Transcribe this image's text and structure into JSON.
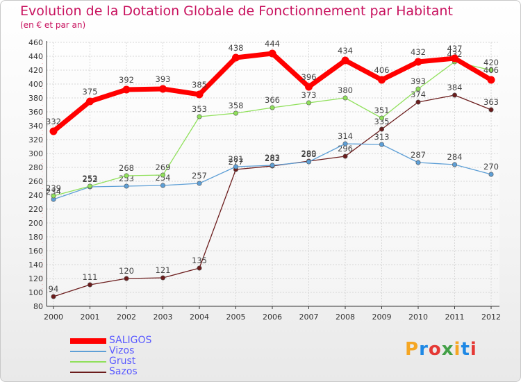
{
  "header": {
    "title": "Evolution de la Dotation Globale de Fonctionnement par Habitant",
    "subtitle": "(en € et par an)"
  },
  "chart_data": {
    "type": "line",
    "title": "Evolution de la Dotation Globale de Fonctionnement par Habitant",
    "subtitle": "(en € et par an)",
    "xlabel": "",
    "ylabel": "",
    "x": [
      "2000",
      "2001",
      "2002",
      "2003",
      "2004",
      "2005",
      "2006",
      "2007",
      "2008",
      "2009",
      "2010",
      "2011",
      "2012"
    ],
    "ylim": [
      80,
      460
    ],
    "yticks": [
      80,
      100,
      120,
      140,
      160,
      180,
      200,
      220,
      240,
      260,
      280,
      300,
      320,
      340,
      360,
      380,
      400,
      420,
      440,
      460
    ],
    "grid": true,
    "legend_position": "bottom-left",
    "series": [
      {
        "name": "Sazos",
        "color": "#6b1c1c",
        "values": [
          94,
          111,
          120,
          121,
          135,
          277,
          282,
          289,
          296,
          335,
          374,
          384,
          363
        ]
      },
      {
        "name": "Vizos",
        "color": "#5e9fd6",
        "values": [
          234,
          252,
          253,
          254,
          257,
          281,
          283,
          288,
          314,
          313,
          287,
          284,
          270
        ]
      },
      {
        "name": "Grust",
        "color": "#8fe05a",
        "values": [
          239,
          253,
          268,
          269,
          353,
          358,
          366,
          373,
          380,
          351,
          393,
          432,
          420
        ]
      },
      {
        "name": "SALIGOS",
        "color": "#ff0000",
        "values": [
          332,
          375,
          392,
          393,
          385,
          438,
          444,
          396,
          434,
          406,
          432,
          437,
          406
        ]
      }
    ]
  },
  "legend": {
    "items": [
      {
        "label": "SALIGOS",
        "color": "#ff0000"
      },
      {
        "label": "Vizos",
        "color": "#5e9fd6"
      },
      {
        "label": "Grust",
        "color": "#8fe05a"
      },
      {
        "label": "Sazos",
        "color": "#6b1c1c"
      }
    ]
  },
  "logo": {
    "letters": [
      "P",
      "r",
      "o",
      "x",
      "i",
      "t",
      "i"
    ],
    "colors": [
      "#f5a623",
      "#1e88e5",
      "#e53935",
      "#43a047",
      "#f5a623",
      "#1e88e5",
      "#e53935"
    ]
  }
}
